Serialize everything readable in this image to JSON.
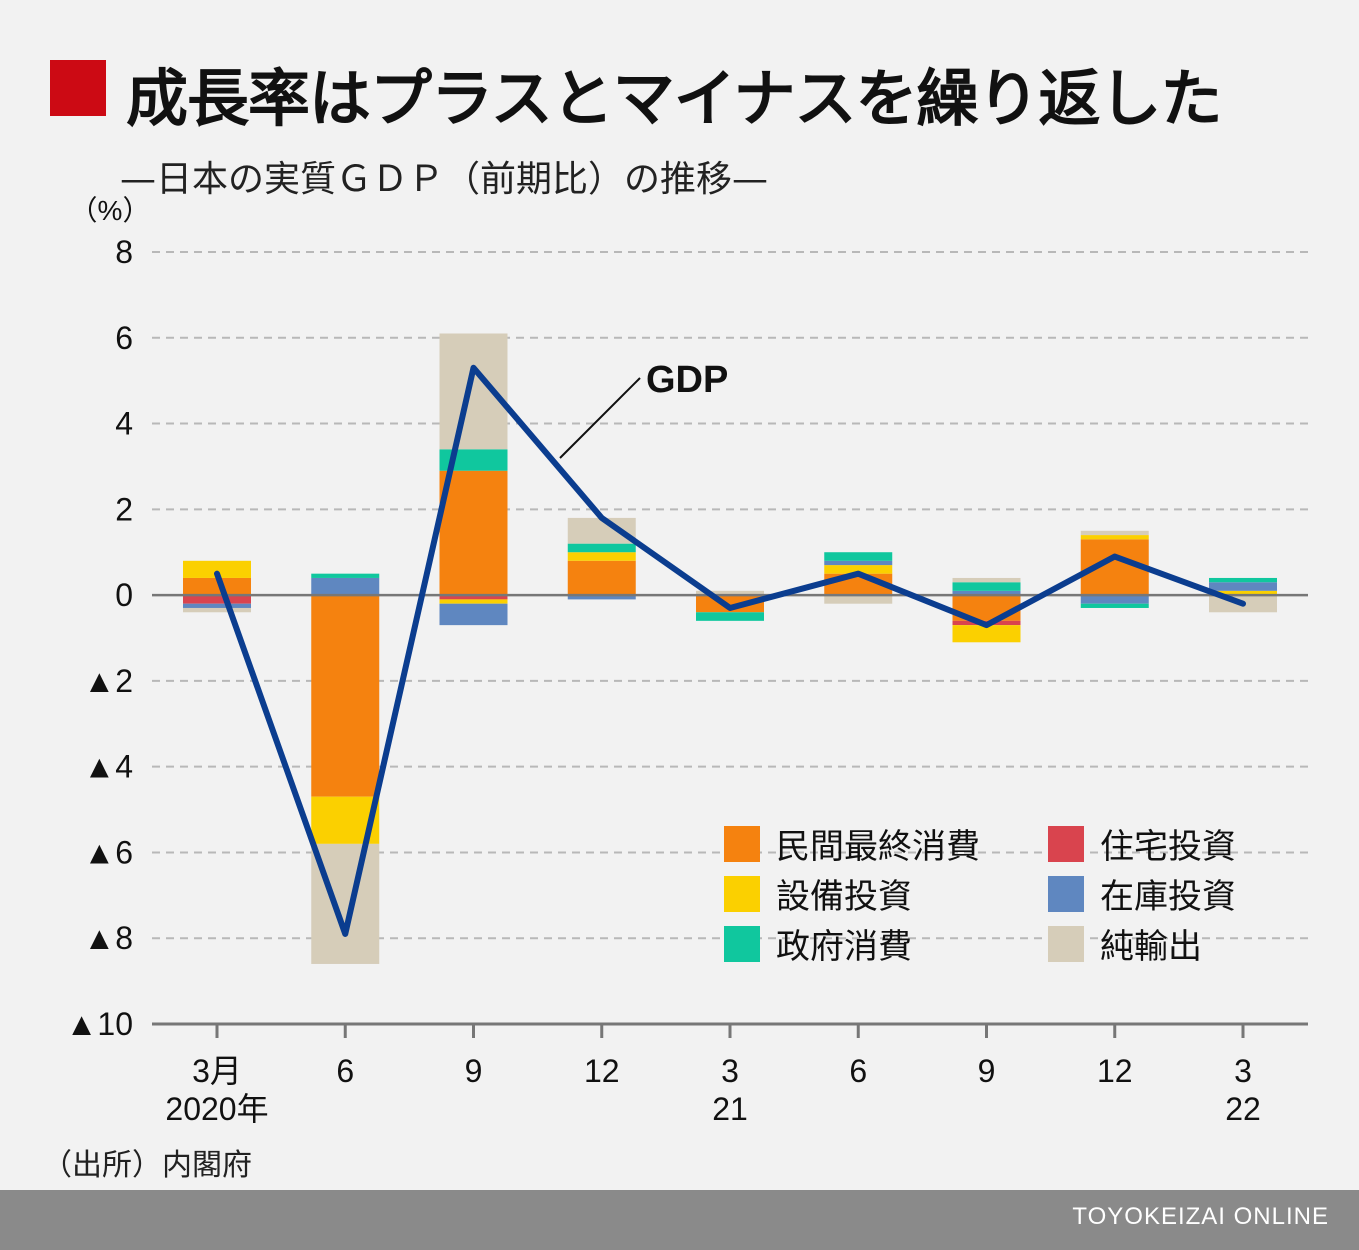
{
  "header": {
    "title": "成長率はプラスとマイナスを繰り返した",
    "subtitle": "—日本の実質ＧＤＰ（前期比）の推移—"
  },
  "footer": {
    "source": "（出所）内閣府",
    "brand": "TOYOKEIZAI ONLINE"
  },
  "colors": {
    "title_mark": "#cc0a14",
    "private_consumption": "#f5820f",
    "housing_investment": "#d9444e",
    "capex": "#fbd000",
    "inventory": "#5f87c0",
    "government_consumption": "#10c79e",
    "net_exports": "#d6cdb9",
    "gdp_line": "#0b3d8f"
  },
  "chart_data": {
    "type": "bar",
    "stacked": true,
    "unit_label": "（%）",
    "ylim": [
      -10,
      8
    ],
    "yticks": [
      8,
      6,
      4,
      2,
      0,
      -2,
      -4,
      -6,
      -8,
      -10
    ],
    "ytick_labels": [
      "8",
      "6",
      "4",
      "2",
      "0",
      "▲2",
      "▲4",
      "▲6",
      "▲8",
      "▲10"
    ],
    "grid": true,
    "categories": [
      "3月\n2020年",
      "6",
      "9",
      "12",
      "3\n21",
      "6",
      "9",
      "12",
      "3\n22"
    ],
    "category_lines": [
      [
        "3月",
        "2020年"
      ],
      [
        "6"
      ],
      [
        "9"
      ],
      [
        "12"
      ],
      [
        "3",
        "21"
      ],
      [
        "6"
      ],
      [
        "9"
      ],
      [
        "12"
      ],
      [
        "3",
        "22"
      ]
    ],
    "series": [
      {
        "name": "民間最終消費",
        "color_key": "private_consumption",
        "values": [
          0.4,
          -4.7,
          2.9,
          0.8,
          -0.4,
          0.5,
          -0.6,
          1.3,
          0.0
        ]
      },
      {
        "name": "住宅投資",
        "color_key": "housing_investment",
        "values": [
          -0.2,
          0.0,
          -0.1,
          0.0,
          0.0,
          0.0,
          -0.1,
          0.0,
          0.0
        ]
      },
      {
        "name": "設備投資",
        "color_key": "capex",
        "values": [
          0.4,
          -1.1,
          -0.1,
          0.2,
          0.0,
          0.2,
          -0.4,
          0.1,
          0.1
        ]
      },
      {
        "name": "在庫投資",
        "color_key": "inventory",
        "values": [
          -0.1,
          0.4,
          -0.5,
          -0.1,
          0.0,
          0.1,
          0.1,
          -0.2,
          0.2
        ]
      },
      {
        "name": "政府消費",
        "color_key": "government_consumption",
        "values": [
          0.0,
          0.1,
          0.5,
          0.2,
          -0.2,
          0.2,
          0.2,
          -0.1,
          0.1
        ]
      },
      {
        "name": "純輸出",
        "color_key": "net_exports",
        "values": [
          -0.1,
          -2.8,
          2.7,
          0.6,
          0.1,
          -0.2,
          0.1,
          0.1,
          -0.4
        ]
      }
    ],
    "line": {
      "name": "GDP",
      "color_key": "gdp_line",
      "values": [
        0.5,
        -7.9,
        5.3,
        1.8,
        -0.3,
        0.5,
        -0.7,
        0.9,
        -0.2
      ]
    },
    "legend": {
      "placement": "bottom-right",
      "items": [
        {
          "label": "民間最終消費",
          "color_key": "private_consumption"
        },
        {
          "label": "住宅投資",
          "color_key": "housing_investment"
        },
        {
          "label": "設備投資",
          "color_key": "capex"
        },
        {
          "label": "在庫投資",
          "color_key": "inventory"
        },
        {
          "label": "政府消費",
          "color_key": "government_consumption"
        },
        {
          "label": "純輸出",
          "color_key": "net_exports"
        }
      ]
    }
  }
}
